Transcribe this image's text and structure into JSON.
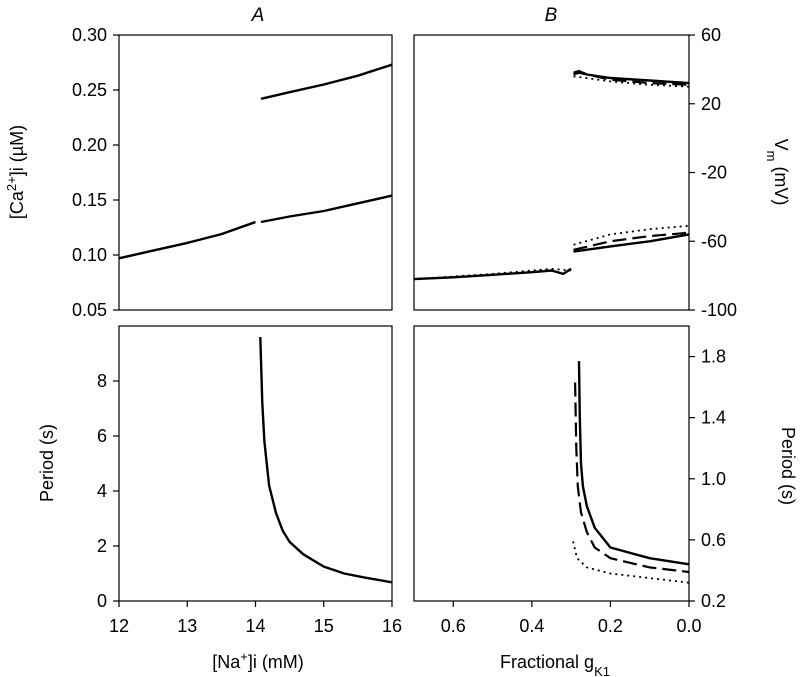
{
  "panels": {
    "A": "A",
    "B": "B"
  },
  "colors": {
    "foreground": "#000000",
    "background": "#ffffff"
  },
  "chart_data": [
    {
      "id": "A_top",
      "type": "line",
      "panel": "A",
      "xlabel": "[Na+]i (mM)",
      "ylabel": "[Ca2+]i (µM)",
      "xlim": [
        12,
        16
      ],
      "ylim": [
        0.05,
        0.3
      ],
      "xticks": [],
      "yticks": [
        "0.05",
        "0.10",
        "0.15",
        "0.20",
        "0.25",
        "0.30"
      ],
      "y_axis_side": "left",
      "grid": false,
      "series": [
        {
          "style": "solid",
          "points": [
            [
              12.0,
              0.097
            ],
            [
              12.5,
              0.104
            ],
            [
              13.0,
              0.111
            ],
            [
              13.5,
              0.119
            ],
            [
              14.0,
              0.13
            ]
          ]
        },
        {
          "style": "solid",
          "points": [
            [
              14.08,
              0.13
            ],
            [
              14.5,
              0.135
            ],
            [
              15.0,
              0.14
            ],
            [
              15.5,
              0.147
            ],
            [
              16.0,
              0.154
            ]
          ]
        },
        {
          "style": "solid",
          "points": [
            [
              14.08,
              0.242
            ],
            [
              14.5,
              0.248
            ],
            [
              15.0,
              0.255
            ],
            [
              15.5,
              0.263
            ],
            [
              16.0,
              0.273
            ]
          ]
        }
      ]
    },
    {
      "id": "A_bottom",
      "type": "line",
      "panel": "A",
      "xlabel": "[Na+]i (mM)",
      "ylabel": "Period (s)",
      "xlim": [
        12,
        16
      ],
      "ylim": [
        0,
        10
      ],
      "xticks": [
        "12",
        "13",
        "14",
        "15",
        "16"
      ],
      "yticks": [
        "0",
        "2",
        "4",
        "6",
        "8"
      ],
      "y_axis_side": "left",
      "grid": false,
      "series": [
        {
          "style": "solid",
          "points": [
            [
              14.07,
              9.6
            ],
            [
              14.1,
              7.2
            ],
            [
              14.13,
              5.8
            ],
            [
              14.2,
              4.2
            ],
            [
              14.3,
              3.2
            ],
            [
              14.4,
              2.55
            ],
            [
              14.5,
              2.15
            ],
            [
              14.7,
              1.7
            ],
            [
              15.0,
              1.25
            ],
            [
              15.3,
              1.0
            ],
            [
              15.6,
              0.85
            ],
            [
              16.0,
              0.68
            ]
          ]
        }
      ]
    },
    {
      "id": "B_top",
      "type": "line",
      "panel": "B",
      "xlabel": "Fractional gK1",
      "ylabel": "Vm (mV)",
      "x_reversed": true,
      "xlim": [
        0.7,
        0.0
      ],
      "ylim": [
        -100,
        60
      ],
      "xticks": [],
      "yticks": [
        "60",
        "20",
        "-20",
        "-60",
        "-100"
      ],
      "y_axis_side": "right",
      "grid": false,
      "series": [
        {
          "style": "solid",
          "points": [
            [
              0.7,
              -82
            ],
            [
              0.6,
              -81
            ],
            [
              0.5,
              -79.5
            ],
            [
              0.4,
              -78
            ],
            [
              0.35,
              -77
            ],
            [
              0.32,
              -79
            ],
            [
              0.3,
              -76
            ]
          ]
        },
        {
          "style": "solid",
          "points": [
            [
              0.294,
              -66
            ],
            [
              0.2,
              -63
            ],
            [
              0.1,
              -60
            ],
            [
              0.0,
              -56
            ]
          ]
        },
        {
          "style": "dashed",
          "points": [
            [
              0.294,
              -65
            ],
            [
              0.2,
              -60
            ],
            [
              0.1,
              -57
            ],
            [
              0.0,
              -55
            ]
          ]
        },
        {
          "style": "dotted",
          "points": [
            [
              0.7,
              -82
            ],
            [
              0.5,
              -79
            ],
            [
              0.35,
              -76
            ],
            [
              0.3,
              -77
            ]
          ]
        },
        {
          "style": "dotted",
          "points": [
            [
              0.294,
              -62
            ],
            [
              0.2,
              -56
            ],
            [
              0.1,
              -53
            ],
            [
              0.0,
              -51
            ]
          ]
        },
        {
          "style": "solid",
          "points": [
            [
              0.294,
              38
            ],
            [
              0.28,
              39
            ],
            [
              0.26,
              37
            ],
            [
              0.2,
              35
            ],
            [
              0.1,
              33.5
            ],
            [
              0.0,
              32
            ]
          ]
        },
        {
          "style": "dashed",
          "points": [
            [
              0.294,
              37
            ],
            [
              0.28,
              38
            ],
            [
              0.2,
              34
            ],
            [
              0.1,
              32
            ],
            [
              0.0,
              31
            ]
          ]
        },
        {
          "style": "dotted",
          "points": [
            [
              0.294,
              36
            ],
            [
              0.2,
              33
            ],
            [
              0.1,
              31
            ],
            [
              0.0,
              30
            ]
          ]
        }
      ]
    },
    {
      "id": "B_bottom",
      "type": "line",
      "panel": "B",
      "xlabel": "Fractional gK1",
      "ylabel": "Period (s)",
      "x_reversed": true,
      "xlim": [
        0.7,
        0.0
      ],
      "ylim": [
        0.2,
        2.0
      ],
      "xticks": [
        "0.6",
        "0.4",
        "0.2",
        "0.0"
      ],
      "yticks": [
        "0.2",
        "0.6",
        "1.0",
        "1.4",
        "1.8"
      ],
      "y_axis_side": "right",
      "grid": false,
      "series": [
        {
          "style": "solid",
          "points": [
            [
              0.28,
              1.77
            ],
            [
              0.278,
              1.4
            ],
            [
              0.275,
              1.1
            ],
            [
              0.27,
              0.95
            ],
            [
              0.26,
              0.82
            ],
            [
              0.24,
              0.68
            ],
            [
              0.2,
              0.55
            ],
            [
              0.1,
              0.48
            ],
            [
              0.0,
              0.44
            ]
          ]
        },
        {
          "style": "dashed",
          "points": [
            [
              0.29,
              1.63
            ],
            [
              0.287,
              1.2
            ],
            [
              0.283,
              0.95
            ],
            [
              0.275,
              0.78
            ],
            [
              0.26,
              0.65
            ],
            [
              0.24,
              0.55
            ],
            [
              0.2,
              0.48
            ],
            [
              0.1,
              0.42
            ],
            [
              0.0,
              0.39
            ]
          ]
        },
        {
          "style": "dotted",
          "points": [
            [
              0.295,
              0.59
            ],
            [
              0.285,
              0.48
            ],
            [
              0.26,
              0.42
            ],
            [
              0.2,
              0.38
            ],
            [
              0.1,
              0.35
            ],
            [
              0.0,
              0.32
            ]
          ]
        }
      ]
    }
  ]
}
